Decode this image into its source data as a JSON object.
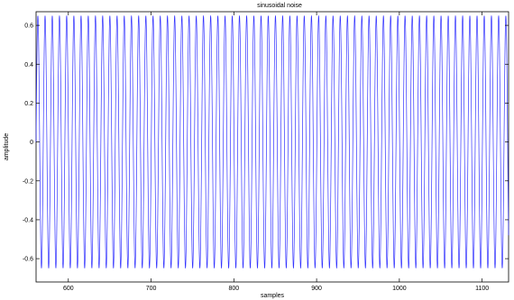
{
  "chart_data": {
    "type": "line",
    "title": "sinusoidal noise",
    "xlabel": "samples",
    "ylabel": "amplitude",
    "xlim": [
      561,
      1132
    ],
    "ylim": [
      -0.72,
      0.67
    ],
    "x_ticks": [
      600,
      700,
      800,
      900,
      1000,
      1100
    ],
    "y_ticks": [
      -0.6,
      -0.4,
      -0.2,
      0,
      0.2,
      0.4,
      0.6
    ],
    "x_tick_labels": [
      "600",
      "700",
      "800",
      "900",
      "1000",
      "1100"
    ],
    "y_tick_labels": [
      "-0.6",
      "-0.4",
      "-0.2",
      "0",
      "0.2",
      "0.4",
      "0.6"
    ],
    "grid": false,
    "line_color": "#3333ff",
    "series": [
      {
        "amplitude": 0.65,
        "period_samples": 8.7,
        "x_start": 561,
        "x_end": 1132
      }
    ]
  }
}
